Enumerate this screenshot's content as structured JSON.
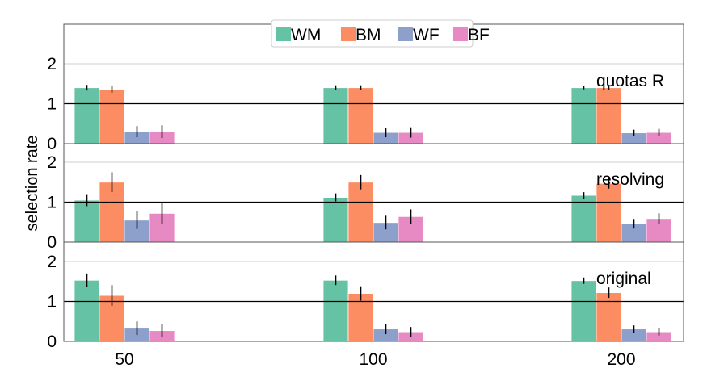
{
  "chart_data": {
    "type": "bar",
    "ylabel": "selection rate",
    "categories": [
      "50",
      "100",
      "200"
    ],
    "ylim": [
      0,
      3
    ],
    "yticks": [
      0,
      1,
      2
    ],
    "reference_line": 1,
    "legend": {
      "placement": "top-center",
      "entries": [
        "WM",
        "BM",
        "WF",
        "BF"
      ]
    },
    "colors": {
      "WM": "#66c2a5",
      "BM": "#fc8d62",
      "WF": "#8da0cb",
      "BF": "#e78ac3"
    },
    "grid": "horizontal",
    "panels": [
      {
        "title": "quotas R",
        "series": [
          {
            "name": "WM",
            "values": [
              1.4,
              1.4,
              1.4
            ],
            "err": [
              0.07,
              0.06,
              0.04
            ]
          },
          {
            "name": "BM",
            "values": [
              1.36,
              1.4,
              1.4
            ],
            "err": [
              0.08,
              0.06,
              0.05
            ]
          },
          {
            "name": "WF",
            "values": [
              0.3,
              0.28,
              0.27
            ],
            "err": [
              0.14,
              0.12,
              0.08
            ]
          },
          {
            "name": "BF",
            "values": [
              0.3,
              0.28,
              0.28
            ],
            "err": [
              0.16,
              0.13,
              0.09
            ]
          }
        ]
      },
      {
        "title": "resolving",
        "series": [
          {
            "name": "WM",
            "values": [
              1.05,
              1.12,
              1.17
            ],
            "err": [
              0.15,
              0.1,
              0.08
            ]
          },
          {
            "name": "BM",
            "values": [
              1.5,
              1.5,
              1.47
            ],
            "err": [
              0.25,
              0.18,
              0.13
            ]
          },
          {
            "name": "WF",
            "values": [
              0.55,
              0.49,
              0.46
            ],
            "err": [
              0.22,
              0.17,
              0.12
            ]
          },
          {
            "name": "BF",
            "values": [
              0.72,
              0.64,
              0.59
            ],
            "err": [
              0.27,
              0.18,
              0.13
            ]
          }
        ]
      },
      {
        "title": "original",
        "series": [
          {
            "name": "WM",
            "values": [
              1.53,
              1.53,
              1.52
            ],
            "err": [
              0.17,
              0.12,
              0.08
            ]
          },
          {
            "name": "BM",
            "values": [
              1.15,
              1.2,
              1.22
            ],
            "err": [
              0.26,
              0.18,
              0.13
            ]
          },
          {
            "name": "WF",
            "values": [
              0.33,
              0.31,
              0.31
            ],
            "err": [
              0.17,
              0.13,
              0.09
            ]
          },
          {
            "name": "BF",
            "values": [
              0.27,
              0.24,
              0.24
            ],
            "err": [
              0.17,
              0.12,
              0.09
            ]
          }
        ]
      }
    ]
  }
}
